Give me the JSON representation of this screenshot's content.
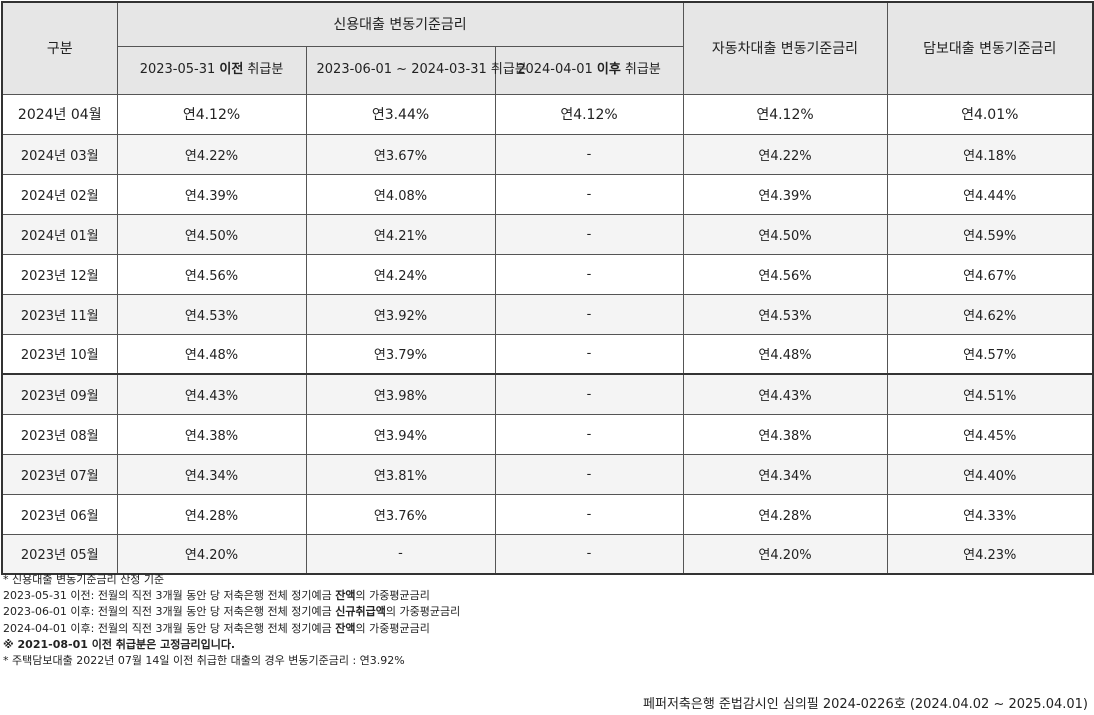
{
  "header": {
    "category": "구분",
    "credit_group": "신용대출 변동기준금리",
    "credit_sub": [
      {
        "prefix": "2023-05-31 ",
        "strong": "이전",
        "suffix": " 취급분"
      },
      {
        "prefix": "2023-06-01 ~ 2024-03-31 취급분",
        "strong": "",
        "suffix": ""
      },
      {
        "prefix": "2024-04-01 ",
        "strong": "이후",
        "suffix": " 취급분"
      }
    ],
    "auto": "자동차대출 변동기준금리",
    "secured": "담보대출 변동기준금리"
  },
  "current_row": [
    "2024년 04월",
    "연4.12%",
    "연3.44%",
    "연4.12%",
    "연4.12%",
    "연4.01%"
  ],
  "rows": [
    [
      "2024년 03월",
      "연4.22%",
      "연3.67%",
      "-",
      "연4.22%",
      "연4.18%"
    ],
    [
      "2024년 02월",
      "연4.39%",
      "연4.08%",
      "-",
      "연4.39%",
      "연4.44%"
    ],
    [
      "2024년 01월",
      "연4.50%",
      "연4.21%",
      "-",
      "연4.50%",
      "연4.59%"
    ],
    [
      "2023년 12월",
      "연4.56%",
      "연4.24%",
      "-",
      "연4.56%",
      "연4.67%"
    ],
    [
      "2023년 11월",
      "연4.53%",
      "연3.92%",
      "-",
      "연4.53%",
      "연4.62%"
    ],
    [
      "2023년 10월",
      "연4.48%",
      "연3.79%",
      "-",
      "연4.48%",
      "연4.57%"
    ],
    [
      "2023년 09월",
      "연4.43%",
      "연3.98%",
      "-",
      "연4.43%",
      "연4.51%"
    ],
    [
      "2023년 08월",
      "연4.38%",
      "연3.94%",
      "-",
      "연4.38%",
      "연4.45%"
    ],
    [
      "2023년 07월",
      "연4.34%",
      "연3.81%",
      "-",
      "연4.34%",
      "연4.40%"
    ],
    [
      "2023년 06월",
      "연4.28%",
      "연3.76%",
      "-",
      "연4.28%",
      "연4.33%"
    ],
    [
      "2023년 05월",
      "연4.20%",
      "-",
      "-",
      "연4.20%",
      "연4.23%"
    ]
  ],
  "notes": [
    {
      "pre": "* 신용대출 변동기준금리 산정 기준",
      "strong": "",
      "post": ""
    },
    {
      "pre": "2023-05-31 이전: 전월의 직전 3개월 동안 당 저축은행 전체 정기예금 ",
      "strong": "잔액",
      "post": "의 가중평균금리"
    },
    {
      "pre": "2023-06-01 이후: 전월의 직전 3개월 동안 당 저축은행 전체 정기예금 ",
      "strong": "신규취급액",
      "post": "의 가중평균금리"
    },
    {
      "pre": "2024-04-01 이후: 전월의 직전 3개월 동안 당 저축은행 전체 정기예금 ",
      "strong": "잔액",
      "post": "의 가중평균금리"
    },
    {
      "pre": "",
      "strong": "※ 2021-08-01 이전 취급분은 고정금리입니다.",
      "post": ""
    },
    {
      "pre": "* 주택담보대출 2022년 07월 14일 이전 취급한 대출의 경우 변동기준금리 : 연3.92%",
      "strong": "",
      "post": ""
    }
  ],
  "footer": "페퍼저축은행 준법감시인 심의필 2024-0226호 (2024.04.02 ~ 2025.04.01)"
}
